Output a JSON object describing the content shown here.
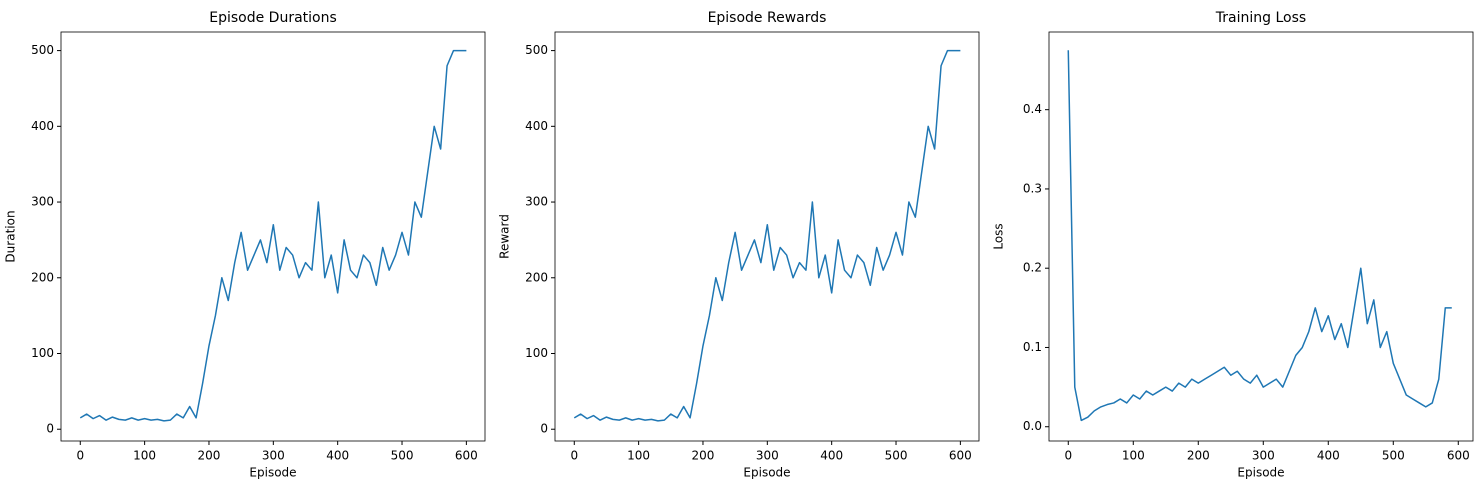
{
  "chart_data": [
    {
      "type": "line",
      "title": "Episode Durations",
      "xlabel": "Episode",
      "ylabel": "Duration",
      "color": "#1f77b4",
      "x": [
        0,
        10,
        20,
        30,
        40,
        50,
        60,
        70,
        80,
        90,
        100,
        110,
        120,
        130,
        140,
        150,
        160,
        170,
        180,
        190,
        200,
        210,
        220,
        230,
        240,
        250,
        260,
        270,
        280,
        290,
        300,
        310,
        320,
        330,
        340,
        350,
        360,
        370,
        380,
        390,
        400,
        410,
        420,
        430,
        440,
        450,
        460,
        470,
        480,
        490,
        500,
        510,
        520,
        530,
        540,
        550,
        560,
        570,
        580,
        590,
        600
      ],
      "values": [
        15,
        20,
        14,
        18,
        12,
        16,
        13,
        12,
        15,
        12,
        14,
        12,
        13,
        11,
        12,
        20,
        15,
        30,
        15,
        60,
        110,
        150,
        200,
        170,
        220,
        260,
        210,
        230,
        250,
        220,
        270,
        210,
        240,
        230,
        200,
        220,
        210,
        300,
        200,
        230,
        180,
        250,
        210,
        200,
        230,
        220,
        190,
        240,
        210,
        230,
        260,
        230,
        300,
        280,
        340,
        400,
        370,
        480,
        500,
        500,
        500
      ],
      "xlim": [
        -29.95,
        628.95
      ],
      "ylim": [
        -15.55,
        524.55
      ],
      "xticks": [
        0,
        100,
        200,
        300,
        400,
        500,
        600
      ],
      "yticks": [
        0,
        100,
        200,
        300,
        400,
        500
      ]
    },
    {
      "type": "line",
      "title": "Episode Rewards",
      "xlabel": "Episode",
      "ylabel": "Reward",
      "color": "#1f77b4",
      "x": [
        0,
        10,
        20,
        30,
        40,
        50,
        60,
        70,
        80,
        90,
        100,
        110,
        120,
        130,
        140,
        150,
        160,
        170,
        180,
        190,
        200,
        210,
        220,
        230,
        240,
        250,
        260,
        270,
        280,
        290,
        300,
        310,
        320,
        330,
        340,
        350,
        360,
        370,
        380,
        390,
        400,
        410,
        420,
        430,
        440,
        450,
        460,
        470,
        480,
        490,
        500,
        510,
        520,
        530,
        540,
        550,
        560,
        570,
        580,
        590,
        600
      ],
      "values": [
        15,
        20,
        14,
        18,
        12,
        16,
        13,
        12,
        15,
        12,
        14,
        12,
        13,
        11,
        12,
        20,
        15,
        30,
        15,
        60,
        110,
        150,
        200,
        170,
        220,
        260,
        210,
        230,
        250,
        220,
        270,
        210,
        240,
        230,
        200,
        220,
        210,
        300,
        200,
        230,
        180,
        250,
        210,
        200,
        230,
        220,
        190,
        240,
        210,
        230,
        260,
        230,
        300,
        280,
        340,
        400,
        370,
        480,
        500,
        500,
        500
      ],
      "xlim": [
        -29.95,
        628.95
      ],
      "ylim": [
        -15.55,
        524.55
      ],
      "xticks": [
        0,
        100,
        200,
        300,
        400,
        500,
        600
      ],
      "yticks": [
        0,
        100,
        200,
        300,
        400,
        500
      ]
    },
    {
      "type": "line",
      "title": "Training Loss",
      "xlabel": "Episode",
      "ylabel": "Loss",
      "color": "#1f77b4",
      "x": [
        0,
        10,
        20,
        30,
        40,
        50,
        60,
        70,
        80,
        90,
        100,
        110,
        120,
        130,
        140,
        150,
        160,
        170,
        180,
        190,
        200,
        210,
        220,
        230,
        240,
        250,
        260,
        270,
        280,
        290,
        300,
        310,
        320,
        330,
        340,
        350,
        360,
        370,
        380,
        390,
        400,
        410,
        420,
        430,
        440,
        450,
        460,
        470,
        480,
        490,
        500,
        510,
        520,
        530,
        540,
        550,
        560,
        570,
        580,
        590
      ],
      "values": [
        0.475,
        0.05,
        0.008,
        0.012,
        0.02,
        0.025,
        0.028,
        0.03,
        0.035,
        0.03,
        0.04,
        0.035,
        0.045,
        0.04,
        0.045,
        0.05,
        0.045,
        0.055,
        0.05,
        0.06,
        0.055,
        0.06,
        0.065,
        0.07,
        0.075,
        0.065,
        0.07,
        0.06,
        0.055,
        0.065,
        0.05,
        0.055,
        0.06,
        0.05,
        0.07,
        0.09,
        0.1,
        0.12,
        0.15,
        0.12,
        0.14,
        0.11,
        0.13,
        0.1,
        0.15,
        0.2,
        0.13,
        0.16,
        0.1,
        0.12,
        0.08,
        0.06,
        0.04,
        0.035,
        0.03,
        0.025,
        0.03,
        0.06,
        0.15,
        0.15
      ],
      "xlim": [
        -29.65,
        622.65
      ],
      "ylim": [
        -0.018,
        0.498
      ],
      "xticks": [
        0,
        100,
        200,
        300,
        400,
        500,
        600
      ],
      "yticks": [
        {
          "value": 0,
          "label": "0.0"
        },
        {
          "value": 0.1,
          "label": "0.1"
        },
        {
          "value": 0.2,
          "label": "0.2"
        },
        {
          "value": 0.3,
          "label": "0.3"
        },
        {
          "value": 0.4,
          "label": "0.4"
        }
      ]
    }
  ]
}
